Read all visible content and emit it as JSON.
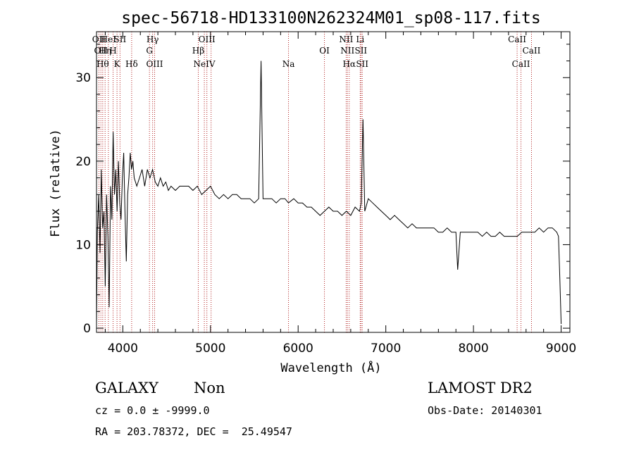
{
  "chart_data": {
    "type": "line",
    "title": "spec-56718-HD133100N262324M01_sp08-117.fits",
    "xlabel": "Wavelength (Å)",
    "ylabel": "Flux (relative)",
    "xlim": [
      3700,
      9100
    ],
    "ylim": [
      -0.5,
      35.5
    ],
    "xticks": [
      4000,
      5000,
      6000,
      7000,
      8000,
      9000
    ],
    "yticks": [
      0,
      10,
      20,
      30
    ],
    "grid": false,
    "series": [
      {
        "x": [
          3700,
          3710,
          3725,
          3740,
          3755,
          3770,
          3785,
          3800,
          3815,
          3830,
          3845,
          3860,
          3875,
          3890,
          3905,
          3920,
          3935,
          3950,
          3965,
          3980,
          3995,
          4010,
          4025,
          4040,
          4055,
          4070,
          4085,
          4100,
          4115,
          4130,
          4160,
          4190,
          4220,
          4250,
          4280,
          4310,
          4340,
          4370,
          4400,
          4430,
          4460,
          4490,
          4520,
          4550,
          4600,
          4650,
          4700,
          4750,
          4800,
          4850,
          4900,
          4950,
          5000,
          5050,
          5100,
          5150,
          5200,
          5250,
          5300,
          5350,
          5400,
          5450,
          5500,
          5550,
          5577,
          5600,
          5650,
          5700,
          5750,
          5800,
          5850,
          5890,
          5950,
          6000,
          6050,
          6100,
          6150,
          6200,
          6250,
          6300,
          6350,
          6400,
          6450,
          6500,
          6550,
          6600,
          6650,
          6700,
          6720,
          6740,
          6760,
          6800,
          6850,
          6900,
          6950,
          7000,
          7050,
          7100,
          7150,
          7200,
          7250,
          7300,
          7350,
          7400,
          7450,
          7500,
          7550,
          7600,
          7650,
          7700,
          7750,
          7800,
          7820,
          7850,
          7900,
          7950,
          8000,
          8050,
          8100,
          8150,
          8200,
          8250,
          8300,
          8350,
          8400,
          8450,
          8500,
          8550,
          8600,
          8650,
          8700,
          8750,
          8800,
          8850,
          8900,
          8950,
          8970,
          8985,
          9000
        ],
        "y": [
          0.5,
          11.5,
          16,
          9,
          19,
          12,
          14,
          5,
          16,
          11,
          2.5,
          17,
          13,
          23.5,
          16,
          19,
          14,
          20,
          15,
          13,
          18,
          21,
          14,
          8,
          16,
          18,
          21,
          19,
          20,
          18,
          17,
          18,
          19,
          17,
          19,
          18,
          19,
          17.5,
          17,
          18,
          17,
          17.5,
          16.5,
          17,
          16.5,
          17,
          17,
          17,
          16.5,
          17,
          16,
          16.5,
          17,
          16,
          15.5,
          16,
          15.5,
          16,
          16,
          15.5,
          15.5,
          15.5,
          15,
          15.5,
          32,
          15.5,
          15.5,
          15.5,
          15,
          15.5,
          15.5,
          15,
          15.5,
          15,
          15,
          14.5,
          14.5,
          14,
          13.5,
          14,
          14.5,
          14,
          14,
          13.5,
          14,
          13.5,
          14.5,
          14,
          15,
          25,
          14,
          15.5,
          15,
          14.5,
          14,
          13.5,
          13,
          13.5,
          13,
          12.5,
          12,
          12.5,
          12,
          12,
          12,
          12,
          12,
          11.5,
          11.5,
          12,
          11.5,
          11.5,
          7,
          11.5,
          11.5,
          11.5,
          11.5,
          11.5,
          11,
          11.5,
          11,
          11,
          11.5,
          11,
          11,
          11,
          11,
          11.5,
          11.5,
          11.5,
          11.5,
          12,
          11.5,
          12,
          12,
          11.5,
          11,
          6,
          0.5
        ]
      }
    ],
    "line_markers": [
      {
        "x": 3727,
        "label": "OII",
        "row": 1
      },
      {
        "x": 3750,
        "label": "OII",
        "row": 2
      },
      {
        "x": 3771,
        "label": "Hθ",
        "row": 3
      },
      {
        "x": 3798,
        "label": "Hη",
        "row": 2
      },
      {
        "x": 3835,
        "label": "HeI",
        "row": 1
      },
      {
        "x": 3889,
        "label": "H",
        "row": 2
      },
      {
        "x": 3934,
        "label": "K",
        "row": 3
      },
      {
        "x": 3968,
        "label": "SII",
        "row": 1
      },
      {
        "x": 4101,
        "label": "Hδ",
        "row": 3
      },
      {
        "x": 4304,
        "label": "G",
        "row": 2
      },
      {
        "x": 4340,
        "label": "Hγ",
        "row": 1
      },
      {
        "x": 4363,
        "label": "OIII",
        "row": 3
      },
      {
        "x": 4861,
        "label": "Hβ",
        "row": 2
      },
      {
        "x": 4959,
        "label": "OIII",
        "row": 1
      },
      {
        "x": 4930,
        "label": "NeIV",
        "row": 3
      },
      {
        "x": 5007,
        "label": "",
        "row": 0
      },
      {
        "x": 5890,
        "label": "Na",
        "row": 3
      },
      {
        "x": 6300,
        "label": "OI",
        "row": 2
      },
      {
        "x": 6548,
        "label": "NII",
        "row": 1
      },
      {
        "x": 6563,
        "label": "NII",
        "row": 2
      },
      {
        "x": 6583,
        "label": "Hα",
        "row": 3
      },
      {
        "x": 6708,
        "label": "Li",
        "row": 1
      },
      {
        "x": 6716,
        "label": "SII",
        "row": 2
      },
      {
        "x": 6731,
        "label": "SII",
        "row": 3
      },
      {
        "x": 8498,
        "label": "CaII",
        "row": 1
      },
      {
        "x": 8542,
        "label": "CaII",
        "row": 3
      },
      {
        "x": 8662,
        "label": "CaII",
        "row": 2
      }
    ]
  },
  "info": {
    "class": "GALAXY",
    "subclass": "Non",
    "survey": "LAMOST DR2",
    "cz": "cz = 0.0 ± -9999.0",
    "obs_date": "Obs-Date: 20140301",
    "radec": "RA = 203.78372, DEC =  25.49547"
  },
  "colors": {
    "marker": "#b22222",
    "spectrum": "#000000"
  }
}
